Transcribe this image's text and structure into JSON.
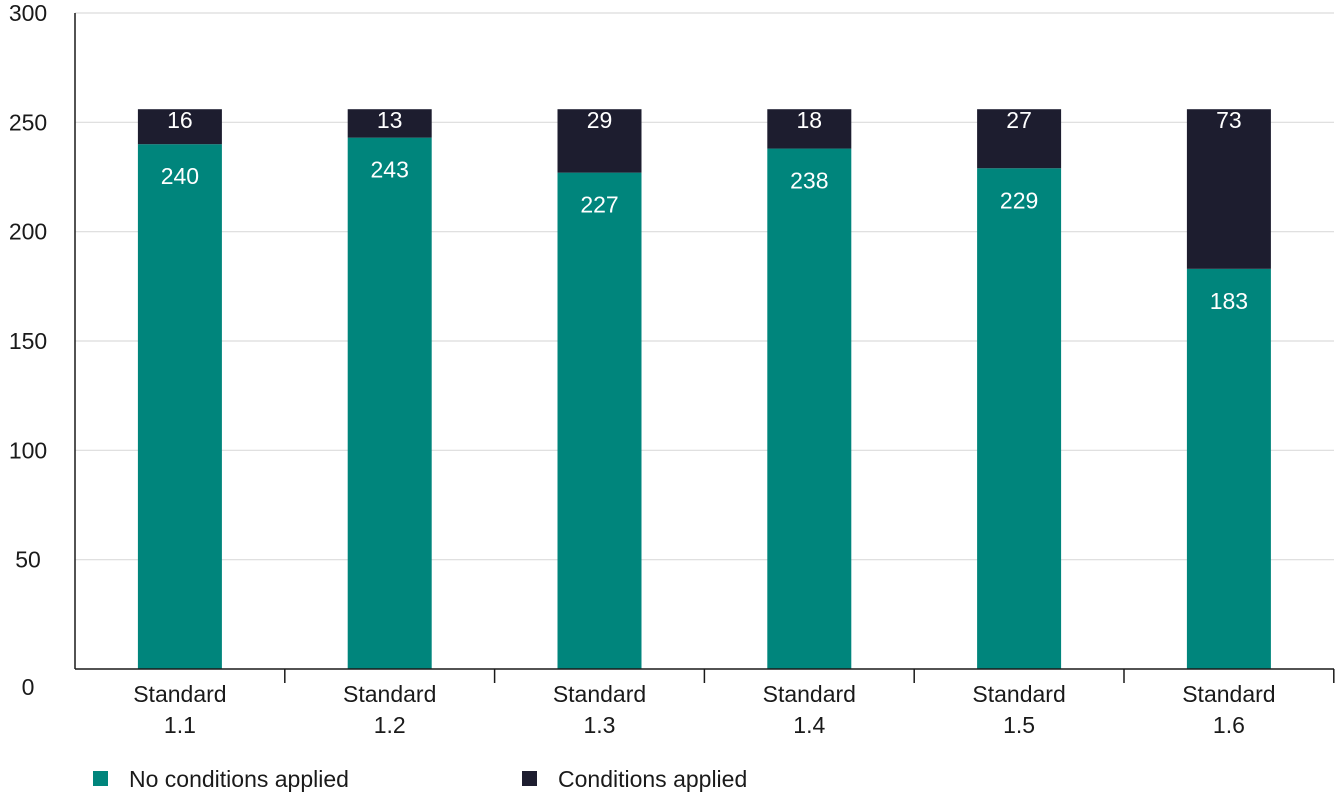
{
  "chart_data": {
    "type": "bar",
    "stacked": true,
    "categories": [
      [
        "Standard",
        "1.1"
      ],
      [
        "Standard",
        "1.2"
      ],
      [
        "Standard",
        "1.3"
      ],
      [
        "Standard",
        "1.4"
      ],
      [
        "Standard",
        "1.5"
      ],
      [
        "Standard",
        "1.6"
      ]
    ],
    "series": [
      {
        "name": "No conditions applied",
        "color": "#00857C",
        "values": [
          240,
          243,
          227,
          238,
          229,
          183
        ]
      },
      {
        "name": "Conditions applied",
        "color": "#1D1D2F",
        "values": [
          16,
          13,
          29,
          18,
          27,
          73
        ]
      }
    ],
    "ylim": [
      0,
      300
    ],
    "yticks": [
      0,
      50,
      100,
      150,
      200,
      250,
      300
    ],
    "grid": true,
    "legend": "bottom-left",
    "data_labels": true
  }
}
